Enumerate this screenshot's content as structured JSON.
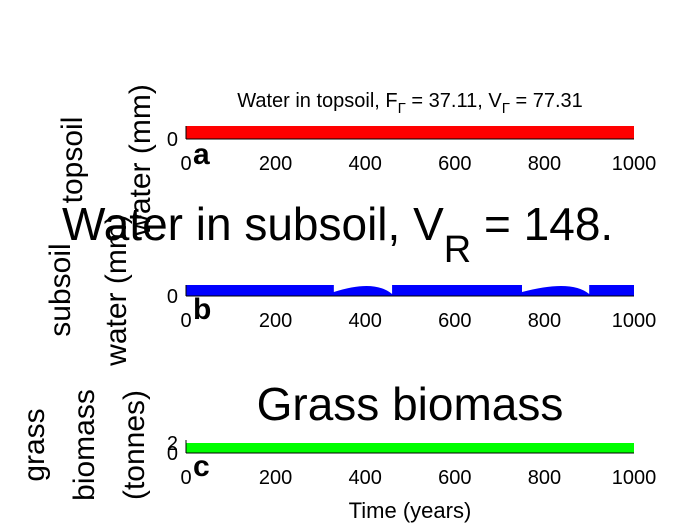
{
  "chart_data": [
    {
      "panel": "a",
      "type": "area",
      "title": "Water in topsoil, F",
      "title_parts": {
        "prefix": "Water in topsoil, F",
        "sub1": "Γ",
        "middle": " = 37.11, V",
        "sub2": "Γ",
        "suffix": " = 77.31"
      },
      "ylabel_lines": [
        "topsoil",
        "water (mm)"
      ],
      "xlabel": "",
      "xlim": [
        0,
        1000
      ],
      "xticks": [
        0,
        200,
        400,
        600,
        800,
        1000
      ],
      "yticks": [
        0
      ],
      "color": "#ff0000",
      "series": [
        {
          "values_min": 0,
          "values_max": 1,
          "fill": "solid"
        }
      ]
    },
    {
      "panel": "b",
      "type": "area",
      "title": "Water in subsoil, V",
      "title_parts": {
        "prefix": "Water in subsoil, V",
        "sub1": "R",
        "suffix": " = 148."
      },
      "ylabel_lines": [
        "subsoil",
        "water (mm)"
      ],
      "xlabel": "",
      "xlim": [
        0,
        1000
      ],
      "xticks": [
        0,
        200,
        400,
        600,
        800,
        1000
      ],
      "yticks": [
        0
      ],
      "color": "#0000ff",
      "gaps": [
        {
          "x": [
            330,
            460
          ],
          "peak_at": 420
        },
        {
          "x": [
            750,
            900
          ],
          "peak_at": 860
        }
      ]
    },
    {
      "panel": "c",
      "type": "area",
      "title": "Grass biomass",
      "ylabel_lines": [
        "grass",
        "biomass",
        "(tonnes)"
      ],
      "xlabel": "Time (years)",
      "xlim": [
        0,
        1000
      ],
      "xticks": [
        0,
        200,
        400,
        600,
        800,
        1000
      ],
      "yticks": [
        0,
        2
      ],
      "color": "#00ff00"
    }
  ]
}
